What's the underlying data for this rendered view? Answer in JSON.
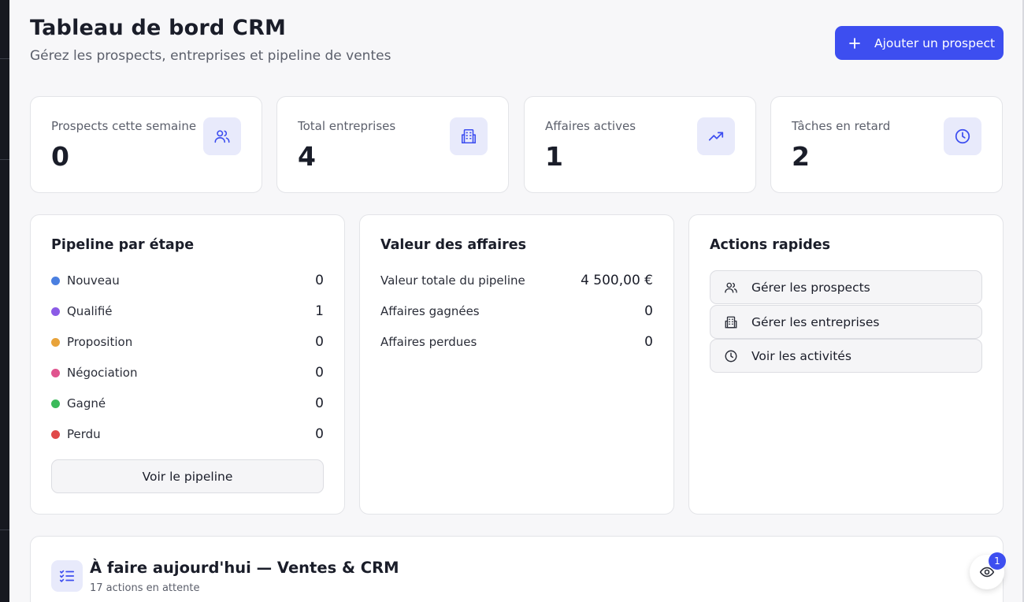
{
  "header": {
    "title": "Tableau de bord CRM",
    "subtitle": "Gérez les prospects, entreprises et pipeline de ventes",
    "add_button_label": "Ajouter un prospect"
  },
  "stats": [
    {
      "label": "Prospects cette semaine",
      "value": "0",
      "icon": "users-icon"
    },
    {
      "label": "Total entreprises",
      "value": "4",
      "icon": "building-icon"
    },
    {
      "label": "Affaires actives",
      "value": "1",
      "icon": "trending-up-icon"
    },
    {
      "label": "Tâches en retard",
      "value": "2",
      "icon": "clock-icon"
    }
  ],
  "pipeline": {
    "title": "Pipeline par étape",
    "stages": [
      {
        "label": "Nouveau",
        "count": "0",
        "color": "#4a7fe0"
      },
      {
        "label": "Qualifié",
        "count": "1",
        "color": "#8b5be6"
      },
      {
        "label": "Proposition",
        "count": "0",
        "color": "#e8a33a"
      },
      {
        "label": "Négociation",
        "count": "0",
        "color": "#e0548f"
      },
      {
        "label": "Gagné",
        "count": "0",
        "color": "#3bba5a"
      },
      {
        "label": "Perdu",
        "count": "0",
        "color": "#e04a4a"
      }
    ],
    "button_label": "Voir le pipeline"
  },
  "deals": {
    "title": "Valeur des affaires",
    "rows": [
      {
        "label": "Valeur totale du pipeline",
        "value": "4 500,00 €"
      },
      {
        "label": "Affaires gagnées",
        "value": "0"
      },
      {
        "label": "Affaires perdues",
        "value": "0"
      }
    ]
  },
  "quick_actions": {
    "title": "Actions rapides",
    "items": [
      {
        "label": "Gérer les prospects",
        "icon": "users-icon"
      },
      {
        "label": "Gérer les entreprises",
        "icon": "building-icon"
      },
      {
        "label": "Voir les activités",
        "icon": "clock-icon"
      }
    ]
  },
  "todo": {
    "title": "À faire aujourd'hui — Ventes & CRM",
    "subtitle": "17 actions en attente",
    "icon": "checklist-icon"
  },
  "floating": {
    "icon": "eye-icon",
    "badge": "1"
  },
  "colors": {
    "accent": "#3d4ef0",
    "icon_bg": "#e8eafb"
  }
}
